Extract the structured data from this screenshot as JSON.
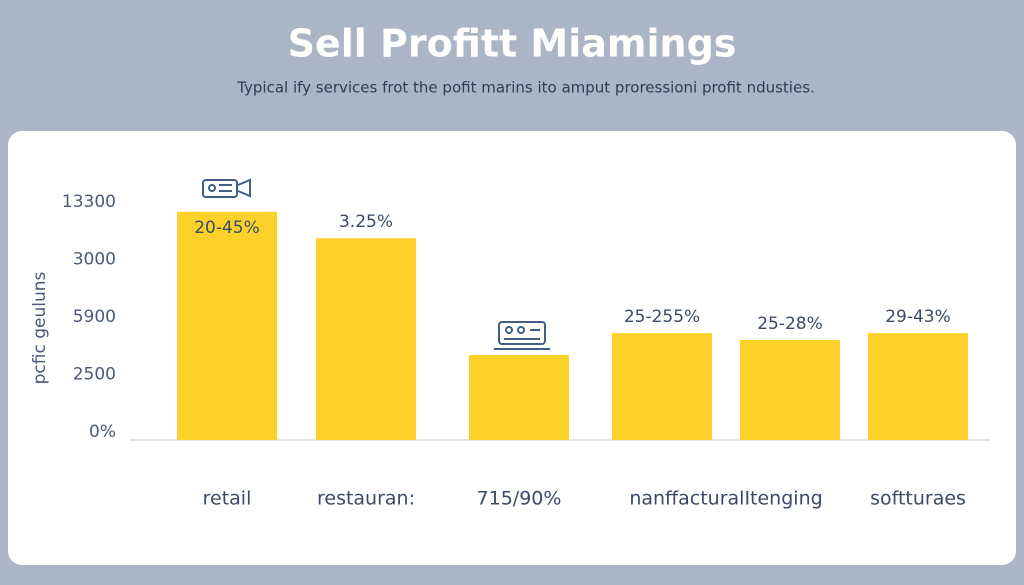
{
  "chart_data": {
    "type": "bar",
    "title": "Sell Profitt Miamings",
    "subtitle": "Typical ify services frot the pofit marins ito amput proressioni profit ndusties.",
    "y_label": "pcfic geuluns",
    "categories": [
      "retail",
      "restauran:",
      "715/90%",
      "nanffacturalItenging",
      null,
      "softturaes"
    ],
    "values": [
      3.83,
      3.37,
      1.34,
      1.72,
      1.6,
      1.72
    ],
    "bar_labels": [
      "20-45%",
      "3.25%",
      null,
      "25-255%",
      "25-28%",
      "29-43%"
    ],
    "color": "#fcd12a",
    "ylim": [
      0,
      4.2
    ],
    "yticks": [
      {
        "value": 0,
        "label": "0%"
      },
      {
        "value": 1,
        "label": "2500"
      },
      {
        "value": 2,
        "label": "5900"
      },
      {
        "value": 3,
        "label": "3000"
      },
      {
        "value": 4,
        "label": "13300"
      }
    ],
    "grid": false
  }
}
